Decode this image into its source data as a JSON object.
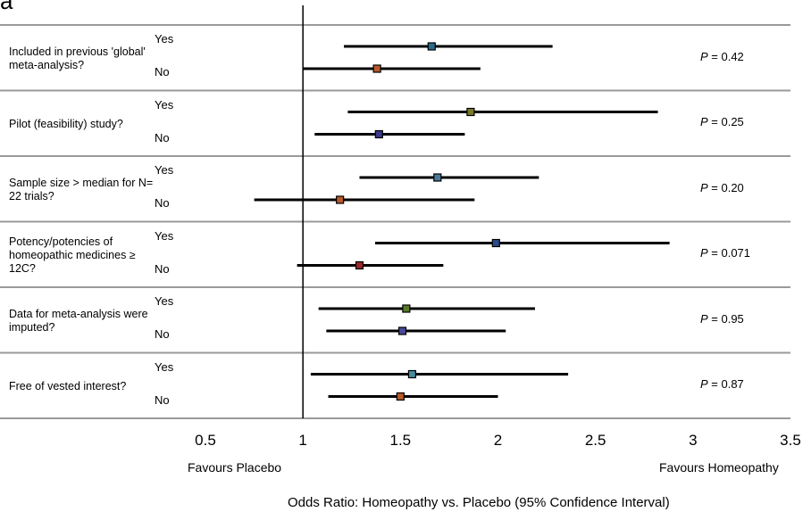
{
  "panel_letter": "a",
  "chart_data": {
    "type": "forest",
    "title": "",
    "xlabel": "Odds Ratio: Homeopathy vs. Placebo (95% Confidence Interval)",
    "xlim": [
      0.5,
      3.5
    ],
    "xticks": [
      "0.5",
      "1",
      "1.5",
      "2",
      "2.5",
      "3",
      "3.5"
    ],
    "xtick_values": [
      0.5,
      1,
      1.5,
      2,
      2.5,
      3,
      3.5
    ],
    "reference_line": 1,
    "favours_left": "Favours Placebo",
    "favours_right": "Favours Homeopathy",
    "groups": [
      {
        "label": "Included in previous 'global' meta-analysis?",
        "p_prefix": "P",
        "p_value": "= 0.42",
        "rows": [
          {
            "label": "Yes",
            "or": 1.66,
            "lower": 1.21,
            "upper": 2.28,
            "color": "#2b6b8a"
          },
          {
            "label": "No",
            "or": 1.38,
            "lower": 1.0,
            "upper": 1.91,
            "color": "#b85a2a"
          }
        ]
      },
      {
        "label": "Pilot (feasibility) study?",
        "p_prefix": "P",
        "p_value": "= 0.25",
        "rows": [
          {
            "label": "Yes",
            "or": 1.86,
            "lower": 1.23,
            "upper": 2.82,
            "color": "#7a7a2a"
          },
          {
            "label": "No",
            "or": 1.39,
            "lower": 1.06,
            "upper": 1.83,
            "color": "#3a3a8a"
          }
        ]
      },
      {
        "label": "Sample size > median for N= 22 trials?",
        "p_prefix": "P",
        "p_value": "= 0.20",
        "rows": [
          {
            "label": "Yes",
            "or": 1.69,
            "lower": 1.29,
            "upper": 2.21,
            "color": "#4a7a9a"
          },
          {
            "label": "No",
            "or": 1.19,
            "lower": 0.75,
            "upper": 1.88,
            "color": "#b85a2a"
          }
        ]
      },
      {
        "label": "Potency/potencies of homeopathic medicines ≥ 12C?",
        "p_prefix": "P",
        "p_value": "= 0.071",
        "rows": [
          {
            "label": "Yes",
            "or": 1.99,
            "lower": 1.37,
            "upper": 2.88,
            "color": "#2a4a8a"
          },
          {
            "label": "No",
            "or": 1.29,
            "lower": 0.97,
            "upper": 1.72,
            "color": "#9a2a2a"
          }
        ]
      },
      {
        "label": "Data for meta-analysis were imputed?",
        "p_prefix": "P",
        "p_value": "= 0.95",
        "rows": [
          {
            "label": "Yes",
            "or": 1.53,
            "lower": 1.08,
            "upper": 2.19,
            "color": "#5a7a2a"
          },
          {
            "label": "No",
            "or": 1.51,
            "lower": 1.12,
            "upper": 2.04,
            "color": "#4a4a9a"
          }
        ]
      },
      {
        "label": "Free of vested interest?",
        "p_prefix": "P",
        "p_value": "= 0.87",
        "rows": [
          {
            "label": "Yes",
            "or": 1.56,
            "lower": 1.04,
            "upper": 2.36,
            "color": "#4a8aa0"
          },
          {
            "label": "No",
            "or": 1.5,
            "lower": 1.13,
            "upper": 2.0,
            "color": "#b85a2a"
          }
        ]
      }
    ]
  }
}
